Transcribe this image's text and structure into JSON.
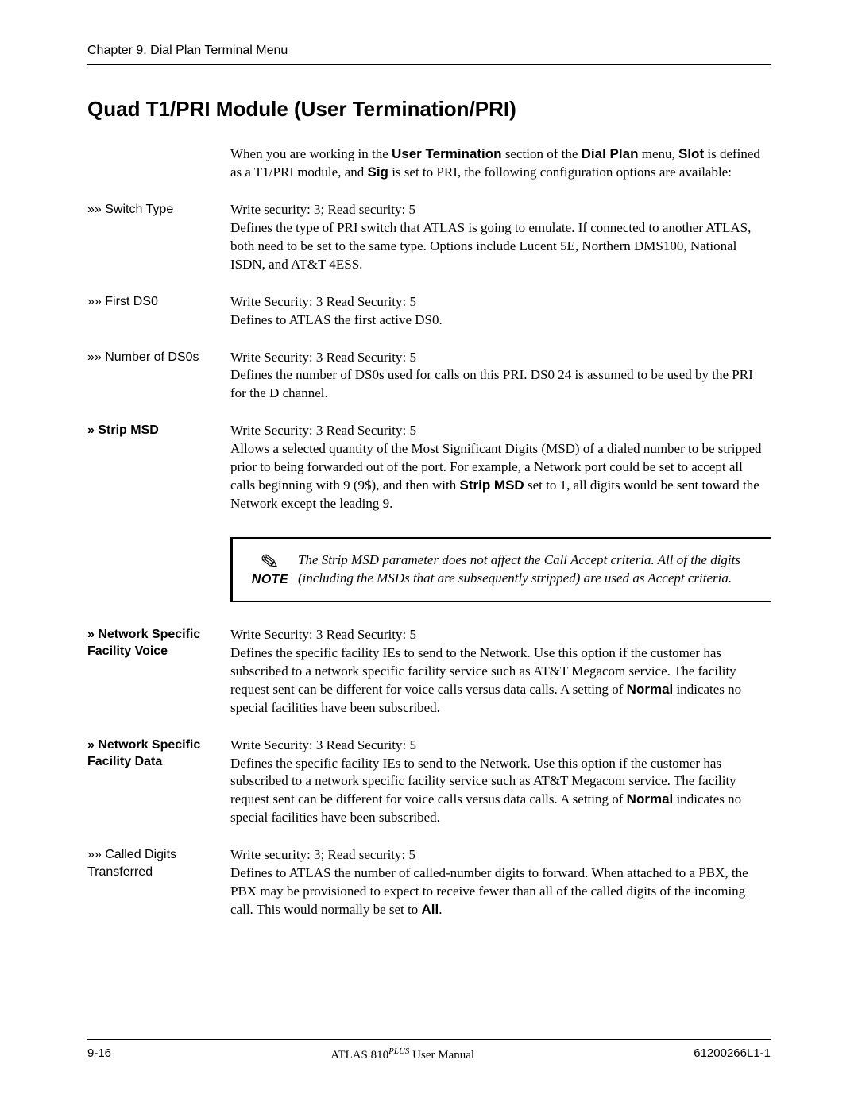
{
  "header": "Chapter 9.  Dial Plan Terminal Menu",
  "title": "Quad T1/PRI Module (User Termination/PRI)",
  "intro_html": "When you are working in the <b class='sans'>User Termination</b> section of the <b class='sans'>Dial Plan</b> menu, <b class='sans'>Slot</b> is defined as a T1/PRI module, and <b class='sans'>Sig</b> is set to PRI, the following configuration options are available:",
  "rows": [
    {
      "label": "»» Switch Type",
      "bold": false,
      "sec": "Write security: 3; Read security: 5",
      "body_html": "Defines the type of PRI switch that ATLAS is going to emulate. If connected to another ATLAS, both need to be set to the same type. Options include Lucent 5E, Northern DMS100, National ISDN, and AT&T 4ESS."
    },
    {
      "label": "»» First DS0",
      "bold": false,
      "sec": "Write Security: 3 Read Security: 5",
      "body_html": "Defines to ATLAS the first active DS0."
    },
    {
      "label": "»» Number of DS0s",
      "bold": false,
      "sec": "Write Security: 3 Read Security: 5",
      "body_html": "Defines the number of DS0s used for calls on this PRI. DS0 24 is assumed to be used by the PRI for the D channel."
    },
    {
      "label": "» Strip MSD",
      "bold": true,
      "sec": "Write Security: 3 Read Security: 5",
      "body_html": "Allows a selected quantity of the Most Significant Digits (MSD) of a dialed number to be stripped prior to being forwarded out of the port. For example, a Network port could be set to accept all calls beginning with 9 (9$), and then with <b class='sans'>Strip MSD</b> set to 1, all digits would be sent toward the Network except the leading 9."
    }
  ],
  "note": {
    "icon_word": "NOTE",
    "text": "The Strip MSD parameter does not affect the Call Accept criteria. All of the digits (including the MSDs that are subsequently stripped) are used as Accept criteria."
  },
  "rows2": [
    {
      "label": "» Network Specific Facility Voice",
      "bold": true,
      "sec": "Write Security: 3 Read Security: 5",
      "body_html": "Defines the specific facility IEs to send to the Network. Use this option if the customer has subscribed to a network specific facility service such as AT&T Megacom service. The facility request sent can be different for voice calls versus data calls. A setting of <b class='sans'>Normal</b> indicates no special facilities have been subscribed."
    },
    {
      "label": "» Network Specific Facility Data",
      "bold": true,
      "sec": "Write Security: 3 Read Security: 5",
      "body_html": "Defines the specific facility IEs to send to the Network. Use this option if the customer has subscribed to a network specific facility service such as AT&T Megacom service. The facility request sent can be different for voice calls versus data calls. A setting of <b class='sans'>Normal</b> indicates no special facilities have been subscribed."
    },
    {
      "label": "»» Called Digits Transferred",
      "bold": false,
      "sec": "Write security: 3; Read security: 5",
      "body_html": "Defines to ATLAS the number of called-number digits to forward.  When attached to a PBX, the PBX may be provisioned to expect to receive fewer than all of the called digits of the incoming call.  This would normally be set to <b class='sans'>All</b>."
    }
  ],
  "footer": {
    "left": "9-16",
    "center_pre": "ATLAS 810",
    "center_sup": "PLUS",
    "center_post": " User Manual",
    "right": "61200266L1-1"
  }
}
